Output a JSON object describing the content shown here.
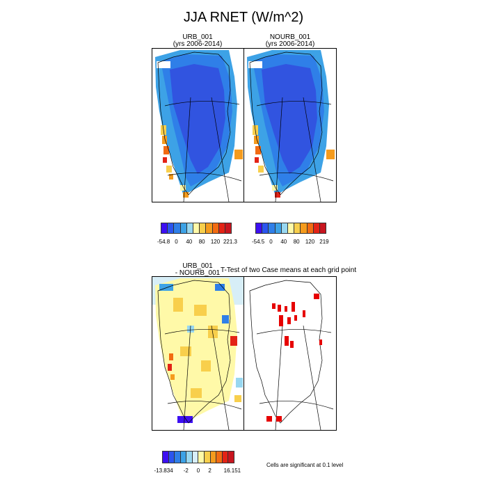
{
  "figure": {
    "title": "JJA RNET (W/m^2)",
    "panels": {
      "top_left": {
        "title_line1": "URB_001",
        "title_line2": "(yrs 2006-2014)"
      },
      "top_right": {
        "title_line1": "NOURB_001",
        "title_line2": "(yrs 2006-2014)"
      },
      "bottom_left": {
        "title_line1": "URB_001",
        "title_line2": "- NOURB_001"
      },
      "bottom_right": {
        "title": "T-Test of two Case means at each grid point"
      }
    },
    "colorbars": {
      "top_left": {
        "colors": [
          "#3d0ff2",
          "#2b55ee",
          "#2f7fe8",
          "#3da2e6",
          "#98d7f0",
          "#fff9a8",
          "#f8cf4c",
          "#f59b1d",
          "#f26b12",
          "#e32316",
          "#c8151f"
        ],
        "labels": [
          "-54.8",
          "0",
          "40",
          "80",
          "120",
          "221.3"
        ]
      },
      "top_right": {
        "colors": [
          "#3d0ff2",
          "#2b55ee",
          "#2f7fe8",
          "#3da2e6",
          "#98d7f0",
          "#fff9a8",
          "#f8cf4c",
          "#f59b1d",
          "#f26b12",
          "#e32316",
          "#c8151f"
        ],
        "labels": [
          "-54.5",
          "0",
          "40",
          "80",
          "120",
          "219"
        ]
      },
      "bottom_left": {
        "colors": [
          "#3d0ff2",
          "#2b55ee",
          "#2f7fe8",
          "#3da2e6",
          "#98d7f0",
          "#d7eef7",
          "#fff9a8",
          "#f8cf4c",
          "#f59b1d",
          "#f26b12",
          "#e32316",
          "#c8151f"
        ],
        "labels": [
          "-13.834",
          "-2",
          "0",
          "2",
          "16.151"
        ]
      }
    },
    "significance_note": "Cells are significant at 0.1 level",
    "colors": {
      "deep_blue": "#3154e0",
      "mid_blue": "#2f7fe8",
      "light_blue": "#3da2e6",
      "significant": "#e60000"
    }
  }
}
